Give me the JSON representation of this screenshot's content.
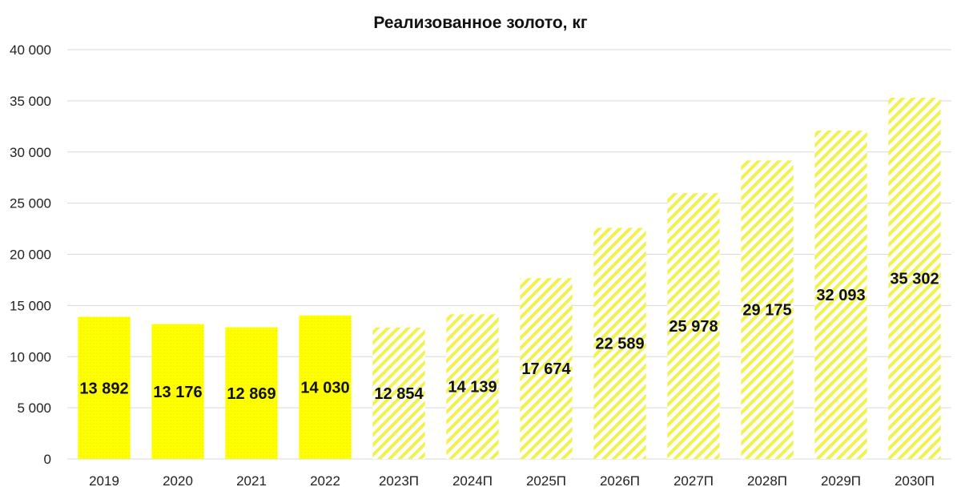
{
  "chart_data": {
    "type": "bar",
    "title": "Реализованное золото, кг",
    "xlabel": "",
    "ylabel": "",
    "categories": [
      "2019",
      "2020",
      "2021",
      "2022",
      "2023П",
      "2024П",
      "2025П",
      "2026П",
      "2027П",
      "2028П",
      "2029П",
      "2030П"
    ],
    "values": [
      13892,
      13176,
      12869,
      14030,
      12854,
      14139,
      17674,
      22589,
      25978,
      29175,
      32093,
      35302
    ],
    "data_labels": [
      "13 892",
      "13 176",
      "12 869",
      "14 030",
      "12 854",
      "14 139",
      "17 674",
      "22 589",
      "25 978",
      "29 175",
      "32 093",
      "35 302"
    ],
    "forecast": [
      false,
      false,
      false,
      false,
      true,
      true,
      true,
      true,
      true,
      true,
      true,
      true
    ],
    "ylim": [
      0,
      40000
    ],
    "yticks": [
      0,
      5000,
      10000,
      15000,
      20000,
      25000,
      30000,
      35000,
      40000
    ],
    "ytick_labels": [
      "0",
      "5 000",
      "10 000",
      "15 000",
      "20 000",
      "25 000",
      "30 000",
      "35 000",
      "40 000"
    ],
    "grid": true,
    "colors": {
      "actual_fill": "#ffff00",
      "forecast_stripe": "#f2f24d",
      "grid": "#d9d9d9"
    }
  }
}
